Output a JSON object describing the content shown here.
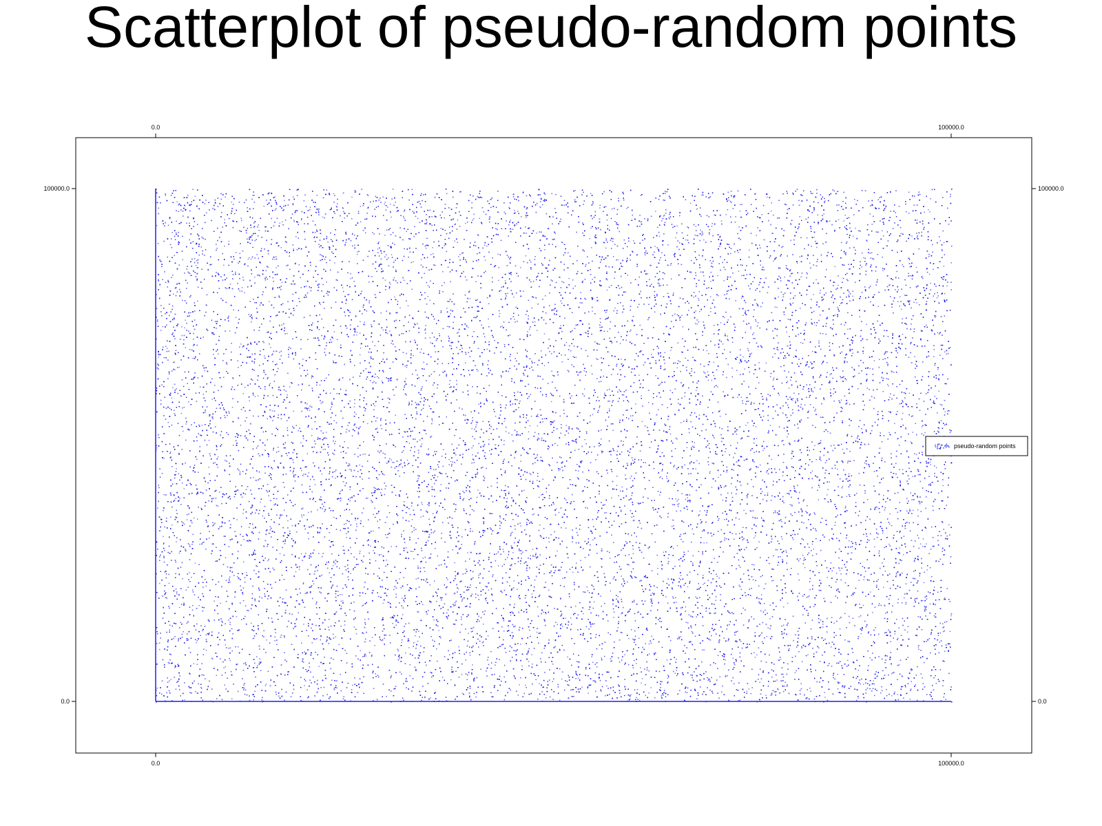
{
  "chart_data": {
    "type": "scatter",
    "title": "Scatterplot of pseudo-random points",
    "xlabel": "",
    "ylabel": "",
    "xlim": [
      0.0,
      100000.0
    ],
    "ylim": [
      0.0,
      100000.0
    ],
    "x_ticks": [
      "0.0",
      "100000.0"
    ],
    "y_ticks": [
      "0.0",
      "100000.0"
    ],
    "grid": false,
    "legend_placement": "right",
    "series": [
      {
        "name": "pseudo-random points",
        "color": "#1f1fe6",
        "marker": "dot",
        "distribution": "uniform pseudo-random over x and y ranges",
        "points": [
          [
            0,
            0
          ],
          [
            12500,
            3000
          ],
          [
            25000,
            1000
          ],
          [
            50000,
            2000
          ],
          [
            100000,
            0
          ],
          [
            0,
            100000
          ],
          [
            100000,
            100000
          ],
          [
            0,
            50000
          ],
          [
            0,
            25000
          ],
          [
            0,
            75000
          ],
          [
            8200,
            61500
          ],
          [
            17300,
            44200
          ],
          [
            23900,
            90100
          ],
          [
            31200,
            12800
          ],
          [
            36800,
            70400
          ],
          [
            42100,
            33700
          ],
          [
            48600,
            85200
          ],
          [
            53900,
            21400
          ],
          [
            59200,
            56900
          ],
          [
            64700,
            8300
          ],
          [
            70300,
            48800
          ],
          [
            75600,
            94600
          ],
          [
            81200,
            37100
          ],
          [
            86500,
            66200
          ],
          [
            91900,
            15700
          ],
          [
            96700,
            79300
          ],
          [
            4400,
            28900
          ],
          [
            13700,
            82600
          ],
          [
            27600,
            53200
          ],
          [
            45300,
            64900
          ],
          [
            67800,
            71800
          ],
          [
            88400,
            51200
          ],
          [
            56100,
            99100
          ],
          [
            33500,
            4900
          ],
          [
            78900,
            24600
          ]
        ]
      }
    ]
  }
}
